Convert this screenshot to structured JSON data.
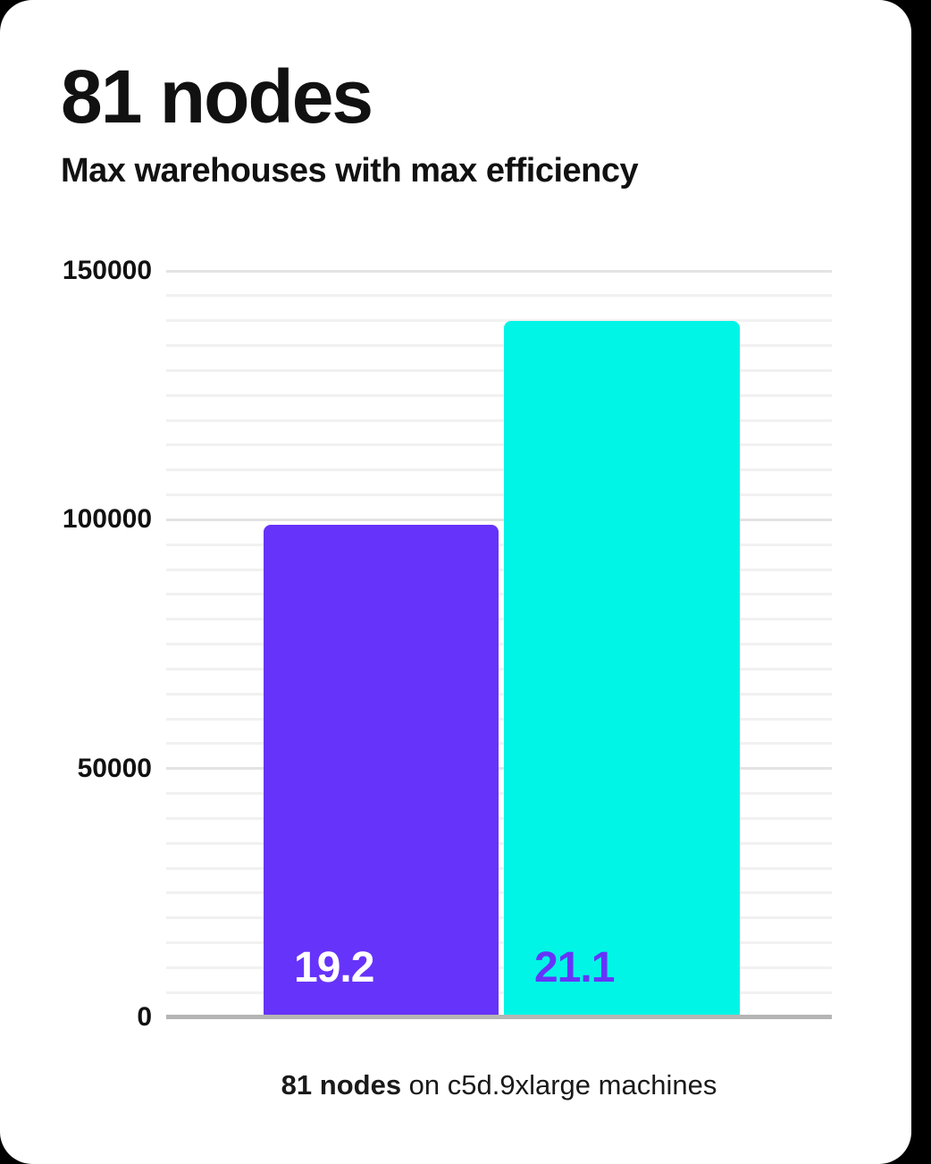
{
  "page": {
    "background_color": "#000000",
    "card_background_color": "#ffffff"
  },
  "header": {
    "title": "81 nodes",
    "subtitle": "Max warehouses with max efficiency"
  },
  "caption": {
    "bold": "81 nodes",
    "rest": " on c5d.9xlarge machines"
  },
  "chart_data": {
    "type": "bar",
    "title": "81 nodes",
    "subtitle": "Max warehouses with max efficiency",
    "categories": [
      "",
      ""
    ],
    "values": [
      99000,
      140000
    ],
    "bar_labels": [
      "19.2",
      "21.1"
    ],
    "bar_colors": [
      "#6633fa",
      "#00f5e6"
    ],
    "bar_label_colors": [
      "#ffffff",
      "#6633fa"
    ],
    "xlabel": "",
    "ylabel": "",
    "ylim": [
      0,
      150000
    ],
    "yticks": [
      0,
      50000,
      100000,
      150000
    ],
    "ytick_labels": [
      "0",
      "50000",
      "100000",
      "150000"
    ],
    "minor_gridline_step": 5000,
    "major_gridline_step": 50000,
    "grid": "horizontal",
    "legend": "none",
    "footnote": "81 nodes on c5d.9xlarge machines",
    "colors": {
      "minor_gridline": "#f1f1f1",
      "major_gridline": "#e3e3e3",
      "axis_baseline": "#b5b5b5",
      "tick_label": "#111111"
    }
  }
}
